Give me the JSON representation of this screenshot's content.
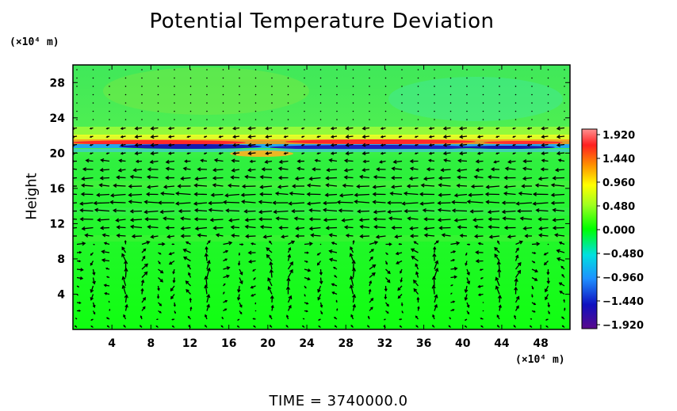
{
  "chart_data": {
    "type": "heatmap",
    "title": "Potential Temperature Deviation",
    "ylabel": "Height",
    "y_unit": "(×10⁴ m)",
    "x_unit": "(×10⁴ m)",
    "xlim": [
      0,
      51
    ],
    "ylim": [
      0,
      30
    ],
    "x_ticks": [
      "4",
      "8",
      "12",
      "16",
      "20",
      "24",
      "28",
      "32",
      "36",
      "40",
      "44",
      "48"
    ],
    "y_ticks": [
      "4",
      "8",
      "12",
      "16",
      "20",
      "24",
      "28"
    ],
    "colorbar": {
      "min": -1.92,
      "max": 1.92,
      "ticks": [
        "1.920",
        "1.440",
        "0.960",
        "0.480",
        "0.000",
        "−0.480",
        "−0.960",
        "−1.440",
        "−1.920"
      ]
    },
    "overlay": "velocity vectors (arrows)",
    "time_label": "TIME  =  3740000.0"
  },
  "colors": {
    "background": "#00ff00",
    "upper_layer": "#40f060",
    "inversion_hot": "#ff3030",
    "inversion_cold": "#2020c0"
  }
}
